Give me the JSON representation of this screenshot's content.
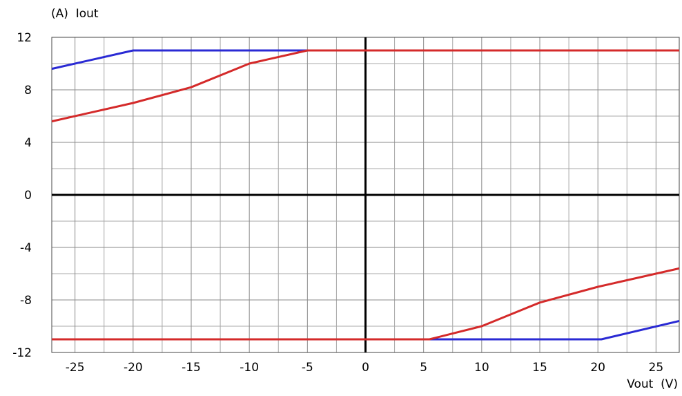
{
  "chart_data": {
    "type": "line",
    "title": "",
    "ylabel": "(A)  Iout",
    "xlabel": "Vout  (V)",
    "xlim": [
      -27,
      27
    ],
    "ylim": [
      -12,
      12
    ],
    "x_ticks": [
      -25,
      -20,
      -15,
      -10,
      -5,
      0,
      5,
      10,
      15,
      20,
      25
    ],
    "x_tick_labels": [
      "-25",
      "-20",
      "-15",
      "-10",
      "-5",
      "0",
      "5",
      "10",
      "15",
      "20",
      "25"
    ],
    "y_ticks": [
      12,
      8,
      4,
      0,
      -4,
      -8,
      -12
    ],
    "y_tick_labels": [
      "12",
      "8",
      "4",
      "0",
      "-4",
      "-8",
      "-12"
    ],
    "x_minor_step": 2.5,
    "y_minor_step": 2,
    "grid": true,
    "series": [
      {
        "color": "#2a2ad4",
        "segments": [
          [
            [
              -27,
              9.6
            ],
            [
              -20,
              11
            ],
            [
              27,
              11
            ]
          ],
          [
            [
              -27,
              -11
            ],
            [
              20.3,
              -11
            ],
            [
              27,
              -9.6
            ]
          ]
        ]
      },
      {
        "color": "#d42a2a",
        "segments": [
          [
            [
              -27,
              5.6
            ],
            [
              -20,
              7
            ],
            [
              -15,
              8.2
            ],
            [
              -10,
              10
            ],
            [
              -5,
              11
            ],
            [
              27,
              11
            ]
          ],
          [
            [
              -27,
              -11
            ],
            [
              5.5,
              -11
            ],
            [
              10,
              -10
            ],
            [
              15,
              -8.2
            ],
            [
              20,
              -7
            ],
            [
              27,
              -5.6
            ]
          ]
        ]
      }
    ]
  }
}
